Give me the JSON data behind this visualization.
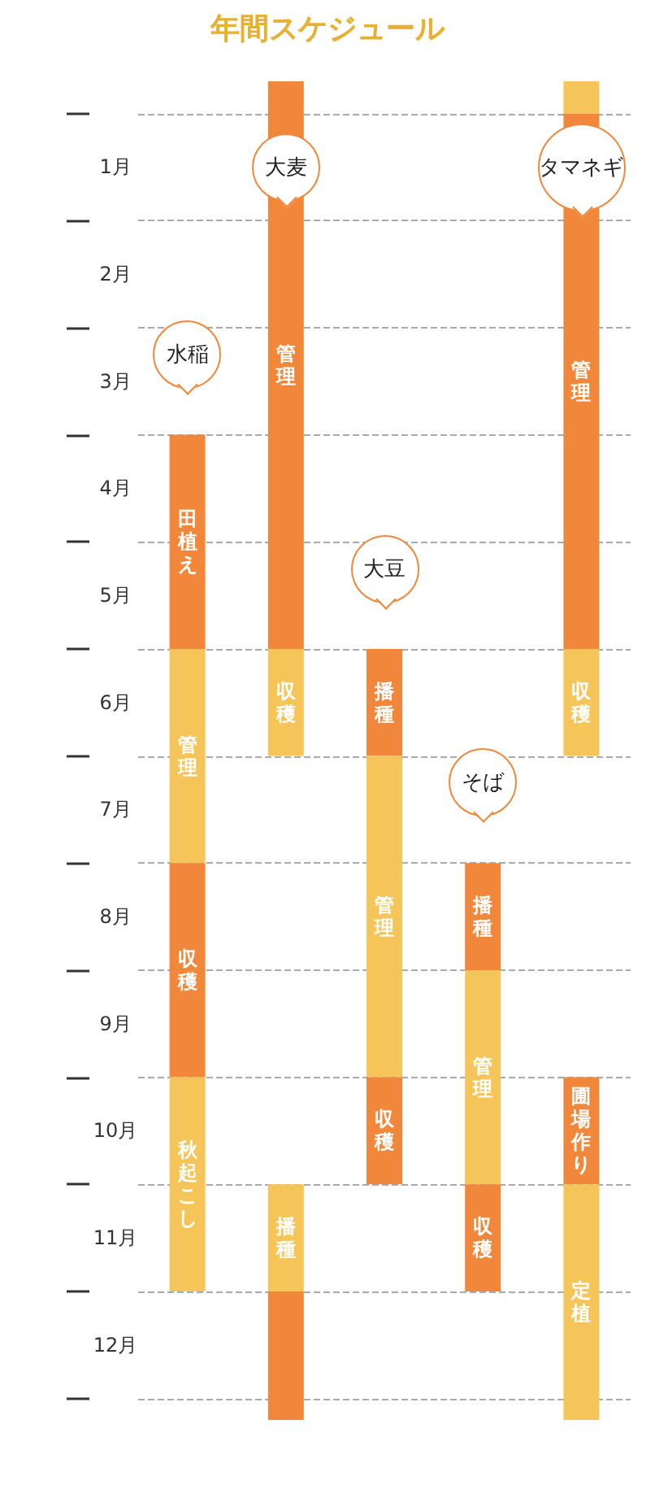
{
  "chart_data": {
    "type": "bar",
    "title": "年間スケジュール",
    "categories": [
      "水稲",
      "大麦",
      "大豆",
      "そば",
      "タマネギ"
    ],
    "ylim": [
      12.2,
      -0.3
    ],
    "yticks": [
      {
        "value": 0,
        "label": null
      },
      {
        "value": 0.5,
        "label": "1月"
      },
      {
        "value": 1,
        "label": null
      },
      {
        "value": 1.5,
        "label": "2月"
      },
      {
        "value": 2,
        "label": null
      },
      {
        "value": 2.5,
        "label": "3月"
      },
      {
        "value": 3,
        "label": null
      },
      {
        "value": 3.5,
        "label": "4月"
      },
      {
        "value": 4,
        "label": null
      },
      {
        "value": 4.5,
        "label": "5月"
      },
      {
        "value": 5,
        "label": null
      },
      {
        "value": 5.5,
        "label": "6月"
      },
      {
        "value": 6,
        "label": null
      },
      {
        "value": 6.5,
        "label": "7月"
      },
      {
        "value": 7,
        "label": null
      },
      {
        "value": 7.5,
        "label": "8月"
      },
      {
        "value": 8,
        "label": null
      },
      {
        "value": 8.5,
        "label": "9月"
      },
      {
        "value": 9,
        "label": null
      },
      {
        "value": 9.5,
        "label": "10月"
      },
      {
        "value": 10,
        "label": null
      },
      {
        "value": 10.5,
        "label": "11月"
      },
      {
        "value": 11,
        "label": null
      },
      {
        "value": 11.5,
        "label": "12月"
      },
      {
        "value": 12,
        "label": null
      }
    ],
    "grid": "y",
    "series": [
      {
        "base": [
          3,
          -0.3,
          5,
          7,
          -0.3
        ],
        "values": [
          2,
          5.3,
          1,
          1,
          0.3
        ],
        "colors": [
          "#f0873a",
          "#f0873a",
          "#f0873a",
          "#f0873a",
          "#f6c55a"
        ],
        "value_labels": [
          "田植え",
          "管理",
          "播種",
          "播種",
          null
        ]
      },
      {
        "base": [
          5,
          5,
          6,
          8,
          0
        ],
        "values": [
          2,
          1,
          3,
          2,
          5
        ],
        "colors": [
          "#f6c55a",
          "#f6c55a",
          "#f6c55a",
          "#f6c55a",
          "#f0873a"
        ],
        "value_labels": [
          "管理",
          "収穫",
          "管理",
          "管理",
          "管理"
        ]
      },
      {
        "base": [
          7,
          10,
          9,
          10,
          5
        ],
        "values": [
          2,
          1,
          1,
          1,
          1
        ],
        "colors": [
          "#f0873a",
          "#f6c55a",
          "#f0873a",
          "#f0873a",
          "#f6c55a"
        ],
        "value_labels": [
          "収穫",
          "播種",
          "収穫",
          "収穫",
          "収穫"
        ]
      },
      {
        "base": [
          9,
          11,
          null,
          null,
          9
        ],
        "values": [
          2,
          1.2,
          null,
          null,
          1
        ],
        "colors": [
          "#f6c55a",
          "#f0873a",
          null,
          null,
          "#f0873a"
        ],
        "value_labels": [
          "秋起こし",
          null,
          null,
          null,
          "圃場作り"
        ]
      },
      {
        "base": [
          null,
          null,
          null,
          null,
          10
        ],
        "values": [
          null,
          null,
          null,
          null,
          2.2
        ],
        "colors": [
          null,
          null,
          null,
          null,
          "#f6c55a"
        ],
        "value_labels": [
          null,
          null,
          null,
          null,
          "定植"
        ]
      }
    ]
  }
}
